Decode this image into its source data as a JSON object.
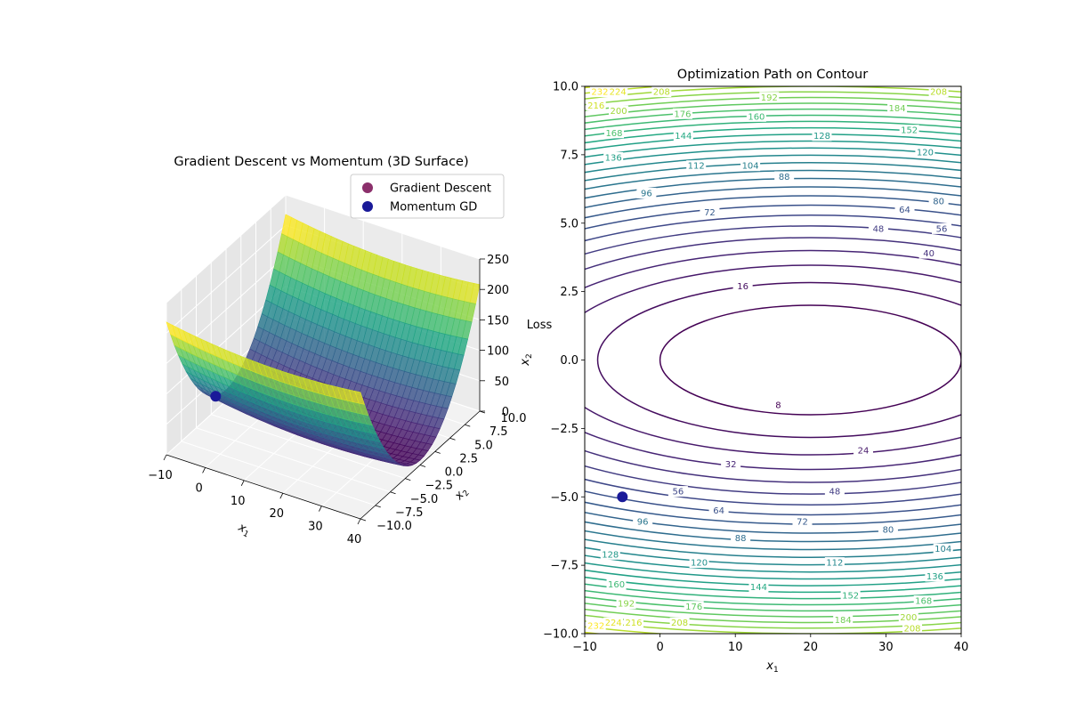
{
  "chart_data": [
    {
      "type": "surface3d",
      "title": "Gradient Descent vs Momentum (3D Surface)",
      "xlabel": "x_1",
      "ylabel": "x_2",
      "zlabel": "Loss",
      "zlabel_extra": "x_2",
      "xlim": [
        -10,
        40
      ],
      "ylim": [
        -10,
        10
      ],
      "zlim": [
        0,
        250
      ],
      "x_ticks": [
        -10,
        0,
        10,
        20,
        30,
        40
      ],
      "y_ticks": [
        -10.0,
        -7.5,
        -5.0,
        -2.5,
        0.0,
        2.5,
        5.0,
        7.5,
        10.0
      ],
      "z_ticks": [
        0,
        50,
        100,
        150,
        200,
        250
      ],
      "function": {
        "x_center": 20,
        "x_coef": 0.02,
        "y_coef": 2
      },
      "colormap": "viridis",
      "legend": {
        "placement": "top-right",
        "entries": [
          {
            "label": "Gradient Descent",
            "color": "#8b2f6b"
          },
          {
            "label": "Momentum GD",
            "color": "#1a1a99"
          }
        ]
      },
      "points": [
        {
          "series": "Momentum GD",
          "x": -5,
          "y": -5,
          "z": 62.5
        }
      ]
    },
    {
      "type": "contour",
      "title": "Optimization Path on Contour",
      "xlabel": "x_1",
      "xlim": [
        -10,
        40
      ],
      "ylim": [
        -10,
        10
      ],
      "x_ticks": [
        -10,
        0,
        10,
        20,
        30,
        40
      ],
      "y_ticks": [
        -10.0,
        -7.5,
        -5.0,
        -2.5,
        0.0,
        2.5,
        5.0,
        7.5,
        10.0
      ],
      "level_step": 8,
      "level_max": 232,
      "colormap": "viridis",
      "points": [
        {
          "series": "Momentum GD",
          "x": -5,
          "y": -5
        }
      ],
      "contour_labels": [
        {
          "text": "8",
          "x": 15.7,
          "y": -1.65
        },
        {
          "text": "16",
          "x": 11.0,
          "y": 2.7
        },
        {
          "text": "24",
          "x": 27.0,
          "y": -3.3
        },
        {
          "text": "32",
          "x": 9.4,
          "y": -3.8
        },
        {
          "text": "40",
          "x": 35.7,
          "y": 3.9
        },
        {
          "text": "48",
          "x": 29.0,
          "y": 4.8
        },
        {
          "text": "48",
          "x": 23.2,
          "y": -4.8
        },
        {
          "text": "56",
          "x": 2.4,
          "y": -4.8
        },
        {
          "text": "56",
          "x": 37.4,
          "y": 4.8
        },
        {
          "text": "64",
          "x": 32.5,
          "y": 5.5
        },
        {
          "text": "64",
          "x": 7.8,
          "y": -5.5
        },
        {
          "text": "72",
          "x": 6.6,
          "y": 5.4
        },
        {
          "text": "72",
          "x": 18.9,
          "y": -5.9
        },
        {
          "text": "80",
          "x": 37.0,
          "y": 5.8
        },
        {
          "text": "80",
          "x": 30.3,
          "y": -6.2
        },
        {
          "text": "88",
          "x": 16.5,
          "y": 6.7
        },
        {
          "text": "88",
          "x": 10.7,
          "y": -6.5
        },
        {
          "text": "96",
          "x": -1.8,
          "y": 6.1
        },
        {
          "text": "96",
          "x": -2.3,
          "y": -5.9
        },
        {
          "text": "104",
          "x": 12.0,
          "y": 7.1
        },
        {
          "text": "104",
          "x": 37.6,
          "y": -6.9
        },
        {
          "text": "112",
          "x": 4.8,
          "y": 7.1
        },
        {
          "text": "112",
          "x": 23.2,
          "y": -7.4
        },
        {
          "text": "120",
          "x": 35.2,
          "y": 7.6
        },
        {
          "text": "120",
          "x": 5.2,
          "y": -7.4
        },
        {
          "text": "128",
          "x": 21.5,
          "y": 8.2
        },
        {
          "text": "128",
          "x": -6.6,
          "y": -7.1
        },
        {
          "text": "136",
          "x": -6.2,
          "y": 7.4
        },
        {
          "text": "136",
          "x": 36.5,
          "y": -7.9
        },
        {
          "text": "144",
          "x": 3.1,
          "y": 8.2
        },
        {
          "text": "144",
          "x": 13.1,
          "y": -8.3
        },
        {
          "text": "152",
          "x": 33.1,
          "y": 8.4
        },
        {
          "text": "152",
          "x": 25.3,
          "y": -8.6
        },
        {
          "text": "160",
          "x": 12.8,
          "y": 8.9
        },
        {
          "text": "160",
          "x": -5.8,
          "y": -8.2
        },
        {
          "text": "168",
          "x": -6.1,
          "y": 8.3
        },
        {
          "text": "168",
          "x": 35.0,
          "y": -8.8
        },
        {
          "text": "176",
          "x": 3.0,
          "y": 9.0
        },
        {
          "text": "176",
          "x": 4.5,
          "y": -9.0
        },
        {
          "text": "184",
          "x": 31.5,
          "y": 9.2
        },
        {
          "text": "184",
          "x": 24.3,
          "y": -9.5
        },
        {
          "text": "192",
          "x": 14.5,
          "y": 9.6
        },
        {
          "text": "192",
          "x": -4.5,
          "y": -8.9
        },
        {
          "text": "200",
          "x": -5.5,
          "y": 9.1
        },
        {
          "text": "200",
          "x": 33.0,
          "y": -9.4
        },
        {
          "text": "208",
          "x": 0.2,
          "y": 9.8
        },
        {
          "text": "208",
          "x": 37.0,
          "y": 9.8
        },
        {
          "text": "208",
          "x": 2.6,
          "y": -9.6
        },
        {
          "text": "208",
          "x": 33.5,
          "y": -9.8
        },
        {
          "text": "216",
          "x": -8.5,
          "y": 9.3
        },
        {
          "text": "216",
          "x": -3.5,
          "y": -9.6
        },
        {
          "text": "224",
          "x": -5.6,
          "y": 9.8
        },
        {
          "text": "224",
          "x": -6.2,
          "y": -9.6
        },
        {
          "text": "232",
          "x": -8.0,
          "y": 9.8
        },
        {
          "text": "232",
          "x": -8.5,
          "y": -9.7
        }
      ]
    }
  ]
}
